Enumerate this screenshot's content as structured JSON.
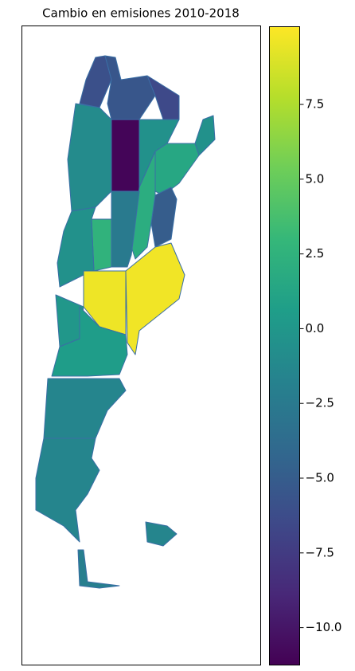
{
  "chart_data": {
    "type": "choropleth",
    "title": "Cambio en emisiones 2010-2018",
    "colormap": "viridis",
    "values": [
      -6,
      -5.5,
      -6.5,
      -0.5,
      -11,
      -1,
      -0.5,
      1.5,
      -5,
      2,
      -2.5,
      2.5,
      -0.5,
      9.6,
      9.7,
      0,
      0.5,
      -1.5,
      -1.5,
      -2,
      -1.5
    ],
    "clim": [
      -11.25,
      10.1
    ],
    "cticks": [
      {
        "value": 7.5,
        "label": "7.5"
      },
      {
        "value": 5,
        "label": "5.0"
      },
      {
        "value": 2.5,
        "label": "2.5"
      },
      {
        "value": 0,
        "label": "0.0"
      },
      {
        "value": -2.5,
        "label": "−2.5"
      },
      {
        "value": -5,
        "label": "−5.0"
      },
      {
        "value": -7.5,
        "label": "−7.5"
      },
      {
        "value": -10,
        "label": "−10.0"
      }
    ]
  }
}
